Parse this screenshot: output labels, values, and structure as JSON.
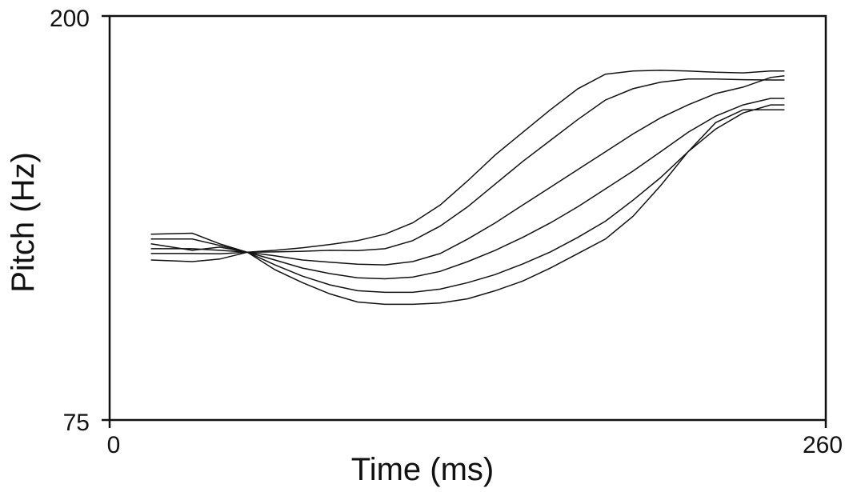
{
  "chart_data": {
    "type": "line",
    "title": "",
    "xlabel": "Time (ms)",
    "ylabel": "Pitch (Hz)",
    "xlim": [
      0,
      260
    ],
    "ylim": [
      75,
      200
    ],
    "x_tick_labels": [
      "0",
      "260"
    ],
    "y_tick_labels": [
      "75",
      "200"
    ],
    "grid": false,
    "legend": "none",
    "line_color": "#111111",
    "x": [
      15,
      30,
      40,
      50,
      60,
      70,
      80,
      90,
      100,
      110,
      120,
      130,
      140,
      150,
      160,
      170,
      180,
      190,
      200,
      210,
      220,
      230,
      240,
      245
    ],
    "series": [
      {
        "values": [
          132.5,
          132.8,
          129.5,
          126.9,
          127.5,
          128.3,
          129.3,
          130.5,
          132.5,
          136,
          141.5,
          149,
          157,
          164,
          171,
          177.5,
          182,
          183,
          183.2,
          183,
          182.6,
          182.4,
          183,
          183
        ]
      },
      {
        "values": [
          131,
          131,
          129,
          126.9,
          127,
          127.2,
          127.5,
          127.4,
          128,
          130.5,
          135,
          141,
          148,
          155,
          161.5,
          168,
          174,
          177.5,
          179.5,
          180.5,
          180.5,
          180.3,
          180.2,
          180.2
        ]
      },
      {
        "values": [
          129.5,
          127.5,
          128.5,
          126.9,
          125.8,
          124.5,
          123.8,
          123.2,
          123,
          124,
          126.5,
          131,
          136,
          141.5,
          147,
          152.5,
          158,
          163.5,
          168.5,
          172.5,
          176,
          178,
          181,
          181.5
        ]
      },
      {
        "values": [
          128,
          128,
          127.5,
          126.9,
          124.5,
          122,
          120.3,
          119,
          118.7,
          119.2,
          121,
          124,
          127.5,
          131.5,
          136,
          141,
          146.5,
          152,
          158,
          164,
          169,
          172.5,
          174.5,
          174.5
        ]
      },
      {
        "values": [
          126.5,
          126.5,
          126.4,
          126.9,
          123,
          119.5,
          116.8,
          115,
          114.5,
          114.5,
          115.5,
          117.5,
          120,
          123.3,
          127,
          131.5,
          136.5,
          143,
          150,
          158,
          165,
          170,
          172.5,
          172.5
        ]
      },
      {
        "values": [
          124.5,
          124,
          124.8,
          126.9,
          121.5,
          117.5,
          114,
          111.5,
          110.8,
          110.8,
          111.2,
          112.5,
          115,
          118,
          122,
          126.5,
          131,
          138,
          147.5,
          158,
          167,
          171,
          171,
          171
        ]
      }
    ]
  }
}
